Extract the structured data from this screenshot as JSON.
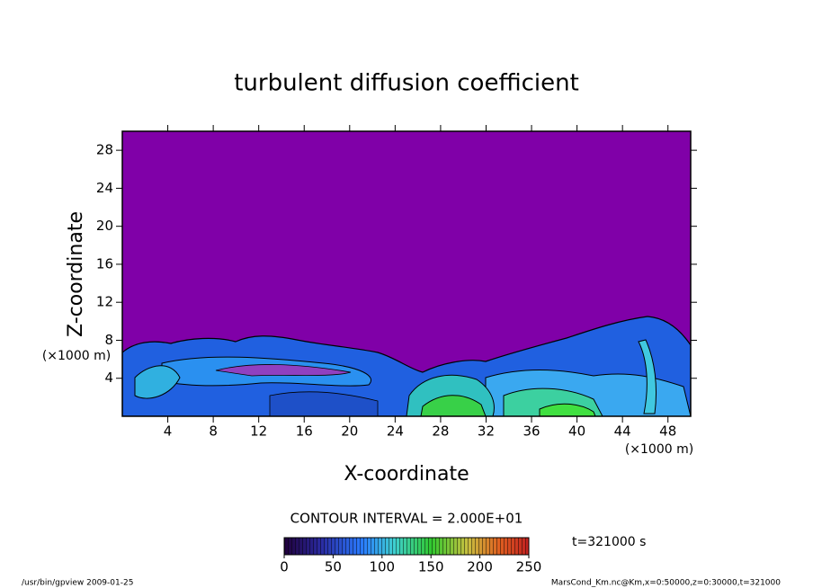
{
  "chart_data": {
    "type": "contour",
    "title": "turbulent diffusion coefficient",
    "x_label": "X-coordinate",
    "y_label": "Z-coordinate",
    "x_unit": "(×1000 m)",
    "y_unit": "(×1000 m)",
    "xlim": [
      0,
      50
    ],
    "ylim": [
      0,
      30
    ],
    "xticks": [
      4,
      8,
      12,
      16,
      20,
      24,
      28,
      32,
      36,
      40,
      44,
      48
    ],
    "yticks": [
      4,
      8,
      12,
      16,
      20,
      24,
      28
    ],
    "contour_interval": "CONTOUR INTERVAL = 2.000E+01",
    "time_label": "t=321000 s",
    "colorbar": {
      "lim": [
        0,
        250
      ],
      "ticks": [
        0,
        50,
        100,
        150,
        200,
        250
      ]
    },
    "footer_left": "/usr/bin/gpview   2009-01-25",
    "footer_right": "MarsCond_Km.nc@Km,x=0:50000,z=0:30000,t=321000"
  }
}
